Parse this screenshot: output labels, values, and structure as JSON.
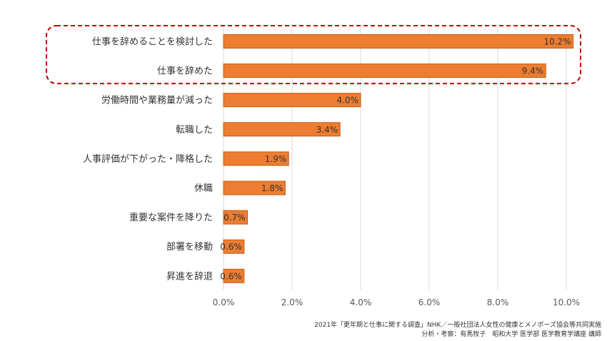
{
  "chart_data": {
    "type": "bar",
    "orientation": "horizontal",
    "categories": [
      "仕事を辞めることを検討した",
      "仕事を辞めた",
      "労働時間や業務量が減った",
      "転職した",
      "人事評価が下がった・降格した",
      "休職",
      "重要な案件を降りた",
      "部署を移動",
      "昇進を辞退"
    ],
    "values": [
      10.2,
      9.4,
      4.0,
      3.4,
      1.9,
      1.8,
      0.7,
      0.6,
      0.6
    ],
    "value_labels": [
      "10.2%",
      "9.4%",
      "4.0%",
      "3.4%",
      "1.9%",
      "1.8%",
      "0.7%",
      "0.6%",
      "0.6%"
    ],
    "xlim": [
      0,
      10
    ],
    "xticks": [
      "0.0%",
      "2.0%",
      "4.0%",
      "6.0%",
      "8.0%",
      "10.0%"
    ],
    "grid": true,
    "highlight": {
      "categories_index": [
        0,
        1
      ],
      "style": "dashed",
      "color": "#c00000"
    },
    "bar_color": "#ed7d31",
    "bar_edge_color": "#c55a11"
  },
  "source": {
    "line1": "2021年「更年期と仕事に関する調査」NHK／一般社団法人女性の健康とメノポーズ協会等共同実施",
    "line2": "分析・考察：有馬牧子　昭和大学 医学部 医学教育学講座 講師"
  }
}
